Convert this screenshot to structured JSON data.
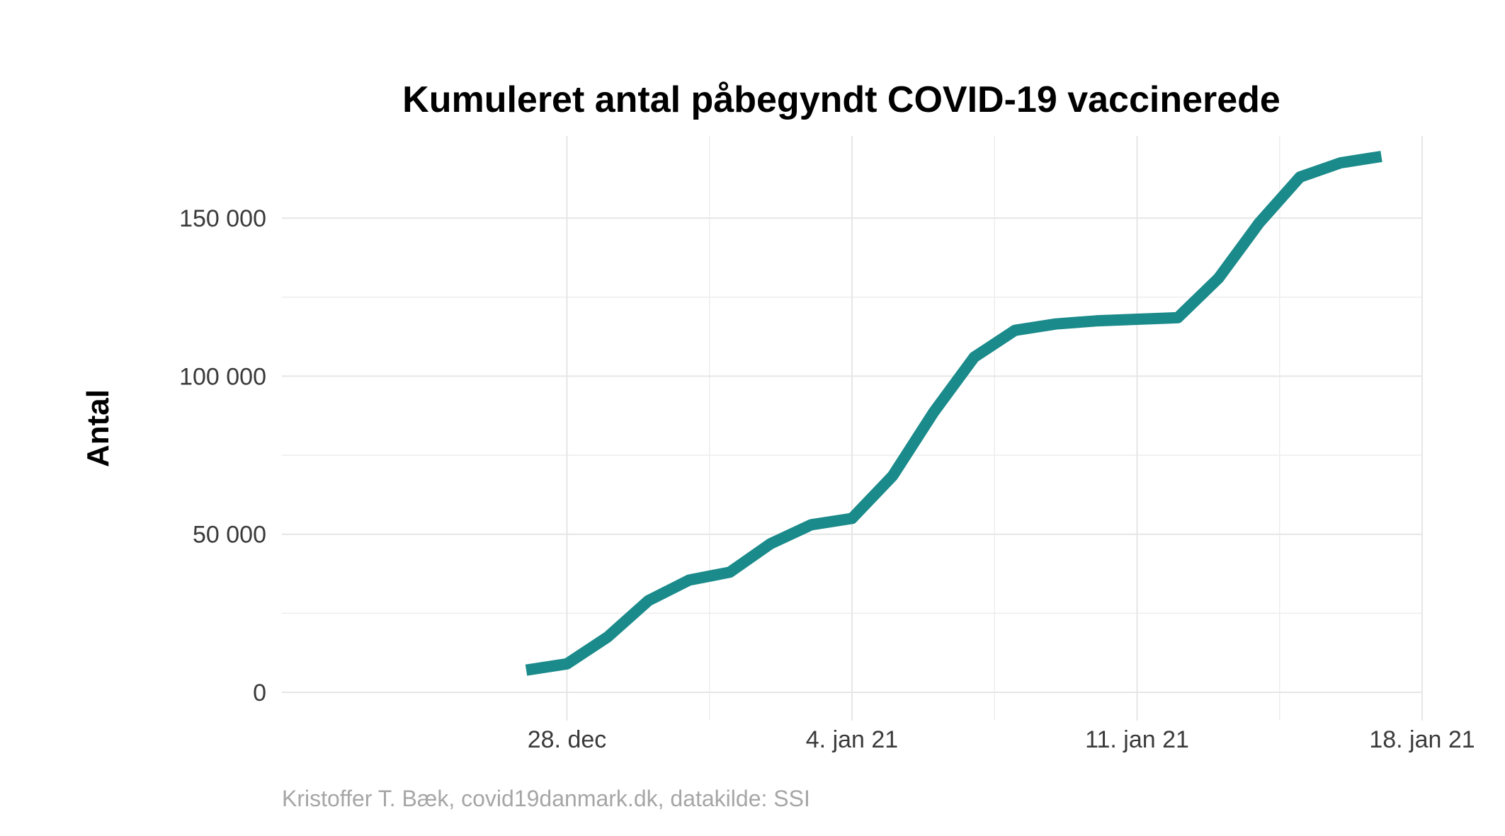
{
  "chart_data": {
    "type": "line",
    "title": "Kumuleret antal påbegyndt COVID-19 vaccinerede",
    "xlabel": "",
    "ylabel": "Antal",
    "caption": "Kristoffer T. Bæk, covid19danmark.dk, datakilde: SSI",
    "line_color": "#1a8a8a",
    "grid": true,
    "legend": "none",
    "xlim": [
      "2020-12-21",
      "2021-01-18"
    ],
    "ylim": [
      0,
      176000
    ],
    "x_ticks": [
      {
        "date": "2020-12-28",
        "label": "28. dec"
      },
      {
        "date": "2021-01-04",
        "label": "4. jan 21"
      },
      {
        "date": "2021-01-11",
        "label": "11. jan 21"
      },
      {
        "date": "2021-01-18",
        "label": "18. jan 21"
      }
    ],
    "y_ticks": [
      {
        "value": 0,
        "label": "0"
      },
      {
        "value": 50000,
        "label": "50 000"
      },
      {
        "value": 100000,
        "label": "100 000"
      },
      {
        "value": 150000,
        "label": "150 000"
      }
    ],
    "series": [
      {
        "x": [
          "2020-12-27",
          "2020-12-28",
          "2020-12-29",
          "2020-12-30",
          "2020-12-31",
          "2021-01-01",
          "2021-01-02",
          "2021-01-03",
          "2021-01-04",
          "2021-01-05",
          "2021-01-06",
          "2021-01-07",
          "2021-01-08",
          "2021-01-09",
          "2021-01-10",
          "2021-01-11",
          "2021-01-12",
          "2021-01-13",
          "2021-01-14",
          "2021-01-15",
          "2021-01-16",
          "2021-01-17"
        ],
        "y": [
          7000,
          9000,
          17500,
          29000,
          35500,
          38000,
          47000,
          53000,
          55000,
          68500,
          88500,
          106000,
          114500,
          116500,
          117500,
          118000,
          118500,
          131000,
          148500,
          163000,
          167500,
          169500
        ]
      }
    ]
  }
}
